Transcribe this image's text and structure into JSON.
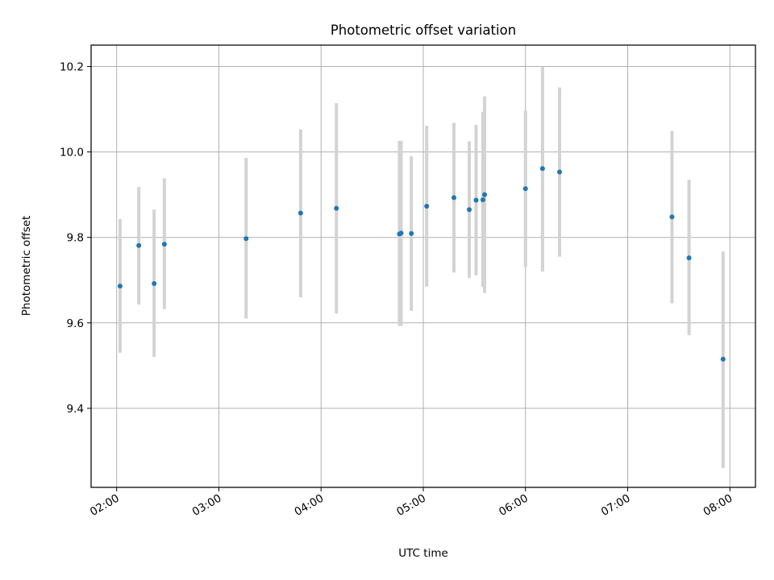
{
  "chart_data": {
    "type": "scatter",
    "title": "Photometric offset variation",
    "xlabel": "UTC time",
    "ylabel": "Photometric offset",
    "x_unit": "hours UTC",
    "xlim": [
      "01:45",
      "08:15"
    ],
    "ylim": [
      9.215,
      10.25
    ],
    "x_ticks": [
      "02:00",
      "03:00",
      "04:00",
      "05:00",
      "06:00",
      "07:00",
      "08:00"
    ],
    "y_ticks": [
      "9.4",
      "9.6",
      "9.8",
      "10.0",
      "10.2"
    ],
    "grid": true,
    "colors": {
      "point": "#1f77b4",
      "errorbar": "#d3d3d3",
      "grid": "#b0b0b0"
    },
    "points": [
      {
        "time": "02:02",
        "y": 9.686,
        "err_low": 9.53,
        "err_high": 9.843
      },
      {
        "time": "02:13",
        "y": 9.781,
        "err_low": 9.643,
        "err_high": 9.918
      },
      {
        "time": "02:22",
        "y": 9.692,
        "err_low": 9.52,
        "err_high": 9.865
      },
      {
        "time": "02:28",
        "y": 9.784,
        "err_low": 9.632,
        "err_high": 9.938
      },
      {
        "time": "03:16",
        "y": 9.797,
        "err_low": 9.61,
        "err_high": 9.986
      },
      {
        "time": "03:48",
        "y": 9.857,
        "err_low": 9.66,
        "err_high": 10.053
      },
      {
        "time": "04:09",
        "y": 9.868,
        "err_low": 9.622,
        "err_high": 10.114
      },
      {
        "time": "04:46",
        "y": 9.808,
        "err_low": 9.593,
        "err_high": 10.026
      },
      {
        "time": "04:47",
        "y": 9.81,
        "err_low": 9.593,
        "err_high": 10.026
      },
      {
        "time": "04:53",
        "y": 9.809,
        "err_low": 9.628,
        "err_high": 9.99
      },
      {
        "time": "05:02",
        "y": 9.873,
        "err_low": 9.685,
        "err_high": 10.061
      },
      {
        "time": "05:18",
        "y": 9.893,
        "err_low": 9.718,
        "err_high": 10.068
      },
      {
        "time": "05:27",
        "y": 9.865,
        "err_low": 9.705,
        "err_high": 10.025
      },
      {
        "time": "05:31",
        "y": 9.887,
        "err_low": 9.711,
        "err_high": 10.063
      },
      {
        "time": "05:35",
        "y": 9.888,
        "err_low": 9.684,
        "err_high": 10.094
      },
      {
        "time": "05:36",
        "y": 9.9,
        "err_low": 9.67,
        "err_high": 10.13
      },
      {
        "time": "06:00",
        "y": 9.914,
        "err_low": 9.731,
        "err_high": 10.097
      },
      {
        "time": "06:10",
        "y": 9.961,
        "err_low": 9.72,
        "err_high": 10.2
      },
      {
        "time": "06:20",
        "y": 9.953,
        "err_low": 9.755,
        "err_high": 10.151
      },
      {
        "time": "07:26",
        "y": 9.848,
        "err_low": 9.646,
        "err_high": 10.049
      },
      {
        "time": "07:36",
        "y": 9.752,
        "err_low": 9.571,
        "err_high": 9.935
      },
      {
        "time": "07:56",
        "y": 9.515,
        "err_low": 9.26,
        "err_high": 9.767
      }
    ]
  }
}
